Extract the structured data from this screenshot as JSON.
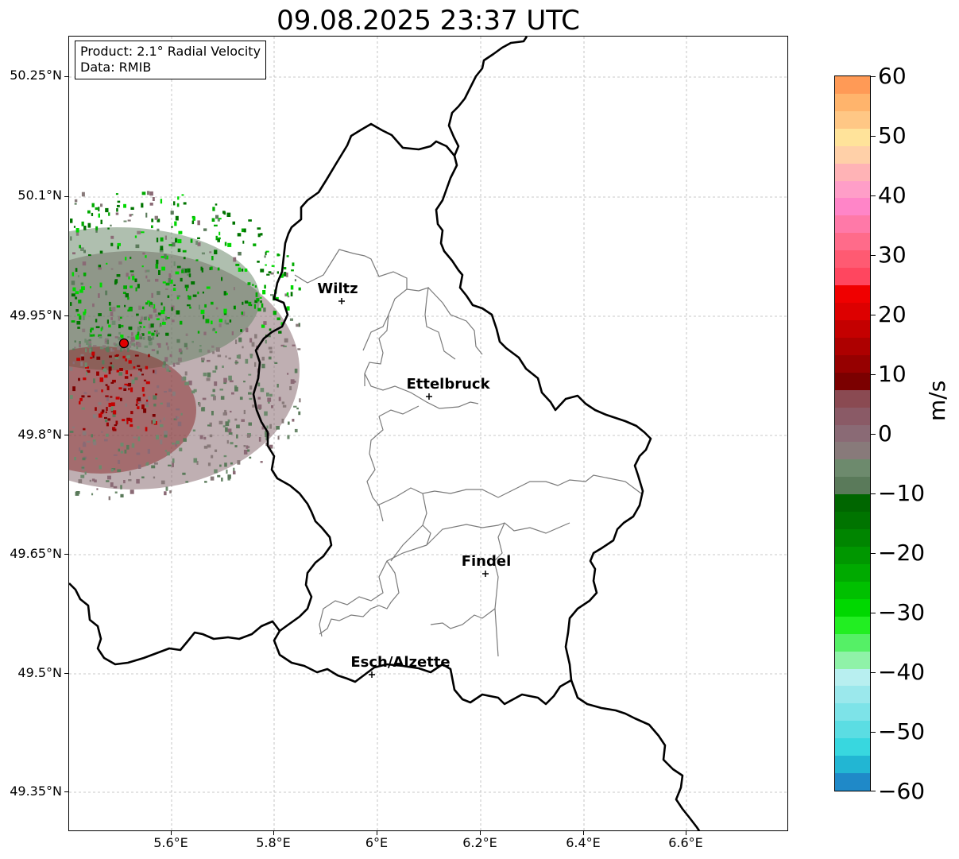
{
  "title": "09.08.2025 23:37 UTC",
  "info": {
    "product": "Product: 2.1° Radial Velocity",
    "data": "Data: RMIB"
  },
  "y_axis": {
    "ticks": [
      "50.25°N",
      "50.1°N",
      "49.95°N",
      "49.8°N",
      "49.65°N",
      "49.5°N",
      "49.35°N"
    ]
  },
  "x_axis": {
    "ticks": [
      "5.6°E",
      "5.8°E",
      "6°E",
      "6.2°E",
      "6.4°E",
      "6.6°E"
    ]
  },
  "cities": [
    {
      "name": "Wiltz"
    },
    {
      "name": "Ettelbruck"
    },
    {
      "name": "Findel"
    },
    {
      "name": "Esch/Alzette"
    }
  ],
  "colorbar": {
    "label": "m/s",
    "ticks": [
      "60",
      "50",
      "40",
      "30",
      "20",
      "10",
      "0",
      "−10",
      "−20",
      "−30",
      "−40",
      "−50",
      "−60"
    ],
    "range": [
      -60,
      60
    ],
    "colors_top_to_bottom": [
      "#ff9a56",
      "#ffb46c",
      "#ffc785",
      "#ffe39a",
      "#ffd0a8",
      "#ffb3b6",
      "#ff9ec8",
      "#ff85c8",
      "#ff79a8",
      "#ff6b8a",
      "#ff5a72",
      "#ff465f",
      "#f00000",
      "#dd0000",
      "#c40000",
      "#ad0000",
      "#960000",
      "#7b0000",
      "#8a4a52",
      "#8a5a66",
      "#8a6a75",
      "#887a7a",
      "#6d8a6d",
      "#5a7a5a",
      "#006600",
      "#007400",
      "#008500",
      "#009700",
      "#00aa00",
      "#00c000",
      "#00d800",
      "#22ee22",
      "#55f066",
      "#8ff2a8",
      "#b8eff0",
      "#9be8ec",
      "#7de3e8",
      "#5bdde3",
      "#38d7df",
      "#22b6d3",
      "#1f89c8"
    ]
  },
  "radar_site": {
    "marker": "red-dot"
  }
}
